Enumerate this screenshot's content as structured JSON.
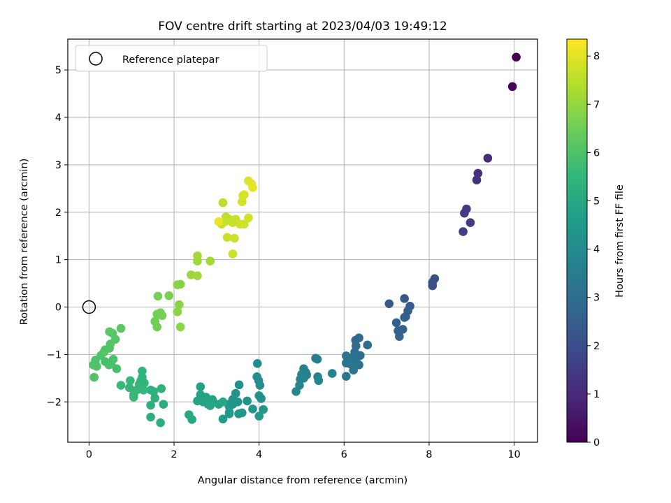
{
  "chart_data": {
    "type": "scatter",
    "title": "FOV centre drift starting at 2023/04/03 19:49:12",
    "xlabel": "Angular distance from reference (arcmin)",
    "ylabel": "Rotation from reference (arcmin)",
    "xlim": [
      -0.5,
      10.55
    ],
    "ylim": [
      -2.85,
      5.65
    ],
    "xticks": [
      "0",
      "2",
      "4",
      "6",
      "8",
      "10"
    ],
    "yticks": [
      "−2",
      "−1",
      "0",
      "1",
      "2",
      "3",
      "4",
      "5"
    ],
    "grid": true,
    "legend": {
      "position": "upper left",
      "entries": [
        "Reference platepar"
      ]
    },
    "reference_point": {
      "x": 0.0,
      "y": 0.0
    },
    "colorbar": {
      "label": "Hours from first FF file",
      "range": [
        0,
        8.35
      ],
      "ticks": [
        "0",
        "1",
        "2",
        "3",
        "4",
        "5",
        "6",
        "7",
        "8"
      ],
      "colormap": [
        "#440154",
        "#482878",
        "#3e4989",
        "#31688e",
        "#26828e",
        "#1f9e89",
        "#35b779",
        "#6ece58",
        "#b5de2b",
        "#fde725"
      ]
    },
    "points": [
      [
        10.05,
        5.27,
        0.0
      ],
      [
        9.96,
        4.65,
        0.15
      ],
      [
        9.38,
        3.14,
        1.05
      ],
      [
        9.15,
        2.82,
        1.15
      ],
      [
        9.12,
        2.68,
        1.2
      ],
      [
        8.88,
        2.07,
        1.4
      ],
      [
        8.83,
        1.98,
        1.45
      ],
      [
        8.97,
        1.78,
        1.5
      ],
      [
        8.8,
        1.59,
        1.55
      ],
      [
        8.13,
        0.6,
        2.0
      ],
      [
        8.08,
        0.52,
        2.05
      ],
      [
        8.08,
        0.45,
        2.1
      ],
      [
        7.42,
        0.18,
        2.3
      ],
      [
        7.06,
        0.07,
        2.35
      ],
      [
        7.55,
        0.02,
        2.4
      ],
      [
        7.5,
        -0.08,
        2.45
      ],
      [
        7.45,
        -0.2,
        2.5
      ],
      [
        7.42,
        -0.22,
        2.52
      ],
      [
        7.23,
        -0.33,
        2.55
      ],
      [
        7.38,
        -0.47,
        2.6
      ],
      [
        7.27,
        -0.5,
        2.62
      ],
      [
        7.3,
        -0.62,
        2.65
      ],
      [
        6.35,
        -0.65,
        2.85
      ],
      [
        6.27,
        -0.7,
        2.9
      ],
      [
        6.55,
        -0.8,
        2.95
      ],
      [
        6.28,
        -0.82,
        2.97
      ],
      [
        6.25,
        -0.95,
        3.0
      ],
      [
        6.38,
        -1.02,
        3.05
      ],
      [
        6.05,
        -1.03,
        3.1
      ],
      [
        6.22,
        -1.05,
        3.12
      ],
      [
        6.1,
        -1.1,
        3.15
      ],
      [
        6.28,
        -1.12,
        3.18
      ],
      [
        6.05,
        -1.18,
        3.2
      ],
      [
        6.35,
        -1.22,
        3.22
      ],
      [
        6.15,
        -1.2,
        3.25
      ],
      [
        6.22,
        -1.33,
        3.3
      ],
      [
        6.05,
        -1.46,
        3.35
      ],
      [
        5.33,
        -1.08,
        3.55
      ],
      [
        5.37,
        -1.1,
        3.57
      ],
      [
        5.05,
        -1.3,
        3.6
      ],
      [
        5.1,
        -1.38,
        3.62
      ],
      [
        5.0,
        -1.42,
        3.65
      ],
      [
        5.12,
        -1.43,
        3.67
      ],
      [
        5.72,
        -1.4,
        3.7
      ],
      [
        5.38,
        -1.47,
        3.72
      ],
      [
        5.05,
        -1.5,
        3.75
      ],
      [
        4.97,
        -1.52,
        3.77
      ],
      [
        5.4,
        -1.55,
        3.8
      ],
      [
        4.95,
        -1.65,
        3.83
      ],
      [
        4.87,
        -1.78,
        3.86
      ],
      [
        3.96,
        -1.19,
        4.05
      ],
      [
        3.95,
        -1.47,
        4.1
      ],
      [
        3.99,
        -1.55,
        4.12
      ],
      [
        4.02,
        -1.65,
        4.15
      ],
      [
        3.53,
        -1.64,
        4.18
      ],
      [
        4.0,
        -1.87,
        4.2
      ],
      [
        4.05,
        -1.93,
        4.22
      ],
      [
        3.45,
        -1.82,
        4.25
      ],
      [
        3.38,
        -1.95,
        4.27
      ],
      [
        3.72,
        -1.98,
        4.3
      ],
      [
        3.5,
        -2.0,
        4.32
      ],
      [
        3.38,
        -2.05,
        4.35
      ],
      [
        3.28,
        -2.05,
        4.37
      ],
      [
        3.3,
        -2.1,
        4.4
      ],
      [
        3.85,
        -2.15,
        4.42
      ],
      [
        4.1,
        -2.16,
        4.44
      ],
      [
        3.6,
        -2.23,
        4.46
      ],
      [
        3.52,
        -2.25,
        4.48
      ],
      [
        3.3,
        -2.22,
        4.5
      ],
      [
        3.3,
        -2.25,
        4.52
      ],
      [
        4.0,
        -2.3,
        4.54
      ],
      [
        3.15,
        -2.36,
        4.56
      ],
      [
        2.62,
        -1.68,
        4.75
      ],
      [
        2.62,
        -1.85,
        4.78
      ],
      [
        2.55,
        -1.98,
        4.8
      ],
      [
        2.75,
        -1.9,
        4.82
      ],
      [
        2.68,
        -2.0,
        4.84
      ],
      [
        2.8,
        -2.05,
        4.86
      ],
      [
        2.9,
        -1.95,
        4.88
      ],
      [
        3.05,
        -2.05,
        4.9
      ],
      [
        3.15,
        -2.0,
        4.92
      ],
      [
        2.85,
        -2.08,
        4.94
      ],
      [
        2.35,
        -2.27,
        4.97
      ],
      [
        2.42,
        -2.37,
        5.0
      ],
      [
        1.75,
        -2.05,
        5.2
      ],
      [
        1.68,
        -2.44,
        5.22
      ],
      [
        1.45,
        -2.32,
        5.25
      ],
      [
        1.45,
        -2.07,
        5.27
      ],
      [
        1.55,
        -1.92,
        5.3
      ],
      [
        1.52,
        -1.78,
        5.32
      ],
      [
        1.45,
        -1.75,
        5.35
      ],
      [
        1.7,
        -1.72,
        5.37
      ],
      [
        1.25,
        -1.35,
        5.4
      ],
      [
        1.25,
        -1.48,
        5.42
      ],
      [
        1.22,
        -1.55,
        5.44
      ],
      [
        1.3,
        -1.6,
        5.46
      ],
      [
        1.18,
        -1.63,
        5.48
      ],
      [
        1.25,
        -1.7,
        5.5
      ],
      [
        1.28,
        -1.75,
        5.52
      ],
      [
        1.12,
        -1.75,
        5.54
      ],
      [
        0.97,
        -1.55,
        5.56
      ],
      [
        0.95,
        -1.7,
        5.58
      ],
      [
        0.75,
        -1.65,
        5.6
      ],
      [
        1.05,
        -1.85,
        5.62
      ],
      [
        1.05,
        -1.9,
        5.64
      ],
      [
        0.65,
        -1.3,
        5.85
      ],
      [
        0.47,
        -1.22,
        5.87
      ],
      [
        0.38,
        -1.15,
        5.89
      ],
      [
        0.52,
        -1.2,
        5.91
      ],
      [
        0.57,
        -1.1,
        5.93
      ],
      [
        0.28,
        -1.02,
        5.95
      ],
      [
        0.15,
        -1.12,
        5.97
      ],
      [
        0.18,
        -1.25,
        5.99
      ],
      [
        0.1,
        -1.22,
        6.01
      ],
      [
        0.12,
        -1.48,
        6.03
      ],
      [
        0.48,
        -0.87,
        6.05
      ],
      [
        0.38,
        -0.9,
        6.07
      ],
      [
        0.35,
        -0.95,
        6.09
      ],
      [
        0.5,
        -0.78,
        6.11
      ],
      [
        0.62,
        -0.68,
        6.13
      ],
      [
        0.55,
        -0.55,
        6.15
      ],
      [
        0.48,
        -0.52,
        6.17
      ],
      [
        0.75,
        -0.45,
        6.19
      ],
      [
        1.6,
        -0.15,
        6.5
      ],
      [
        1.55,
        -0.3,
        6.52
      ],
      [
        1.6,
        -0.42,
        6.54
      ],
      [
        1.68,
        -0.12,
        6.56
      ],
      [
        1.72,
        -0.18,
        6.58
      ],
      [
        1.62,
        0.23,
        6.6
      ],
      [
        1.88,
        0.24,
        6.62
      ],
      [
        2.15,
        0.48,
        6.8
      ],
      [
        2.08,
        0.47,
        6.82
      ],
      [
        2.12,
        0.05,
        6.84
      ],
      [
        2.08,
        -0.1,
        6.86
      ],
      [
        2.15,
        -0.42,
        6.88
      ],
      [
        2.4,
        0.68,
        7.1
      ],
      [
        2.55,
        0.66,
        7.12
      ],
      [
        2.55,
        0.97,
        7.14
      ],
      [
        2.55,
        1.08,
        7.16
      ],
      [
        2.85,
        0.97,
        7.18
      ],
      [
        3.15,
        2.2,
        7.5
      ],
      [
        3.22,
        1.9,
        7.55
      ],
      [
        3.3,
        1.85,
        7.57
      ],
      [
        3.2,
        1.8,
        7.6
      ],
      [
        3.12,
        1.75,
        7.62
      ],
      [
        3.45,
        1.85,
        7.64
      ],
      [
        3.38,
        1.78,
        7.66
      ],
      [
        3.25,
        1.47,
        7.68
      ],
      [
        3.42,
        1.45,
        7.7
      ],
      [
        3.38,
        1.12,
        7.72
      ],
      [
        3.55,
        1.75,
        7.74
      ],
      [
        3.65,
        1.75,
        7.76
      ],
      [
        3.75,
        1.88,
        7.78
      ],
      [
        3.6,
        2.22,
        7.8
      ],
      [
        3.62,
        2.35,
        7.82
      ],
      [
        3.65,
        2.37,
        7.84
      ],
      [
        3.75,
        2.66,
        7.95
      ],
      [
        3.82,
        2.6,
        8.0
      ],
      [
        3.85,
        2.52,
        8.05
      ],
      [
        3.05,
        1.8,
        8.1
      ]
    ]
  }
}
